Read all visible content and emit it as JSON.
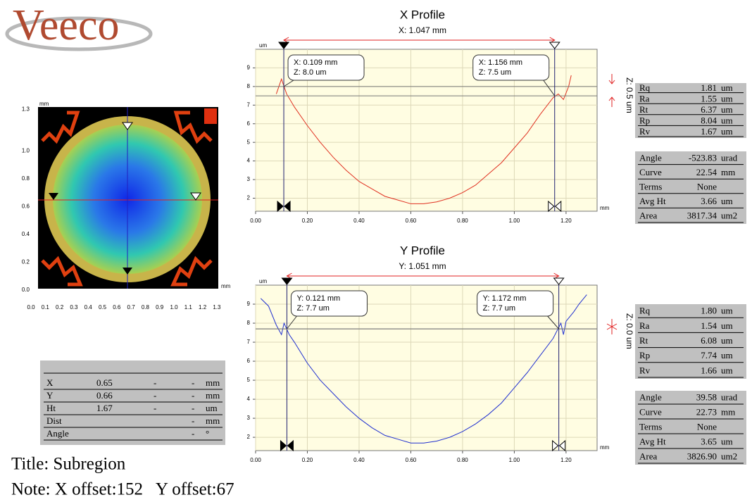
{
  "logo": "Veeco",
  "map": {
    "unit": "mm",
    "xticks": [
      "0.0",
      "0.1",
      "0.2",
      "0.3",
      "0.4",
      "0.5",
      "0.6",
      "0.7",
      "0.8",
      "0.9",
      "1.0",
      "1.1",
      "1.2",
      "1.3"
    ],
    "yticks": [
      "0.0",
      "0.2",
      "0.4",
      "0.6",
      "0.8",
      "1.0",
      "1.3"
    ]
  },
  "chart_data": [
    {
      "type": "line",
      "title": "X Profile",
      "subtitle": "X: 1.047 mm",
      "x_label": "mm",
      "y_label": "um",
      "side_label": "Z: 0.5 um",
      "xlim": [
        0,
        1.32
      ],
      "ylim": [
        1.3,
        10
      ],
      "xticks": [
        {
          "value": 0,
          "label": "0.00"
        },
        {
          "value": 0.2,
          "label": "0.20"
        },
        {
          "value": 0.4,
          "label": "0.40"
        },
        {
          "value": 0.6,
          "label": "0.60"
        },
        {
          "value": 0.8,
          "label": "0.80"
        },
        {
          "value": 1,
          "label": "1.00"
        },
        {
          "value": 1.2,
          "label": "1.20"
        }
      ],
      "yticks": [
        2,
        3,
        4,
        5,
        6,
        7,
        8,
        9
      ],
      "grid": true,
      "series": [
        {
          "name": "X",
          "color": "#e03020",
          "x": [
            0.08,
            0.1,
            0.12,
            0.15,
            0.2,
            0.25,
            0.3,
            0.35,
            0.4,
            0.45,
            0.5,
            0.55,
            0.6,
            0.65,
            0.7,
            0.75,
            0.8,
            0.85,
            0.9,
            0.95,
            1.0,
            1.05,
            1.1,
            1.15,
            1.17,
            1.19,
            1.21,
            1.22
          ],
          "values": [
            7.6,
            8.4,
            7.6,
            6.9,
            5.9,
            5.0,
            4.2,
            3.5,
            2.9,
            2.5,
            2.1,
            1.9,
            1.7,
            1.7,
            1.8,
            2.0,
            2.3,
            2.7,
            3.3,
            3.9,
            4.7,
            5.5,
            6.5,
            7.4,
            7.6,
            7.3,
            8.0,
            8.6
          ]
        }
      ],
      "cursors": [
        {
          "x": 0.109,
          "z": 8.0,
          "label_x": "X: 0.109 mm",
          "label_z": "Z: 8.0 um"
        },
        {
          "x": 1.156,
          "z": 7.5,
          "label_x": "X: 1.156 mm",
          "label_z": "Z: 7.5 um"
        }
      ]
    },
    {
      "type": "line",
      "title": "Y Profile",
      "subtitle": "Y: 1.051 mm",
      "x_label": "mm",
      "y_label": "um",
      "side_label": "Z: 0.0 um",
      "xlim": [
        0,
        1.32
      ],
      "ylim": [
        1.3,
        10
      ],
      "xticks": [
        {
          "value": 0,
          "label": "0.00"
        },
        {
          "value": 0.2,
          "label": "0.20"
        },
        {
          "value": 0.4,
          "label": "0.40"
        },
        {
          "value": 0.6,
          "label": "0.60"
        },
        {
          "value": 0.8,
          "label": "0.80"
        },
        {
          "value": 1,
          "label": "1.00"
        },
        {
          "value": 1.2,
          "label": "1.20"
        }
      ],
      "yticks": [
        2,
        3,
        4,
        5,
        6,
        7,
        8,
        9
      ],
      "grid": true,
      "series": [
        {
          "name": "Y",
          "color": "#2030d0",
          "x": [
            0.02,
            0.05,
            0.08,
            0.1,
            0.11,
            0.13,
            0.15,
            0.2,
            0.25,
            0.3,
            0.35,
            0.4,
            0.45,
            0.5,
            0.55,
            0.6,
            0.65,
            0.7,
            0.75,
            0.8,
            0.85,
            0.9,
            0.95,
            1.0,
            1.05,
            1.1,
            1.15,
            1.18,
            1.19,
            1.2,
            1.23,
            1.25,
            1.28
          ],
          "values": [
            9.3,
            8.9,
            7.9,
            7.4,
            8.0,
            7.4,
            7.0,
            5.9,
            5.0,
            4.3,
            3.6,
            3.0,
            2.5,
            2.1,
            1.9,
            1.7,
            1.7,
            1.8,
            2.0,
            2.3,
            2.7,
            3.2,
            3.8,
            4.6,
            5.4,
            6.3,
            7.2,
            8.0,
            7.4,
            8.1,
            8.6,
            9.0,
            9.5
          ]
        }
      ],
      "cursors": [
        {
          "x": 0.121,
          "z": 7.7,
          "label_x": "Y: 0.121 mm",
          "label_z": "Z: 7.7 um"
        },
        {
          "x": 1.172,
          "z": 7.7,
          "label_x": "Y: 1.172 mm",
          "label_z": "Z: 7.7 um"
        }
      ]
    }
  ],
  "stats": [
    {
      "rows": [
        [
          "Rq",
          "1.81",
          "um"
        ],
        [
          "Ra",
          "1.55",
          "um"
        ],
        [
          "Rt",
          "6.37",
          "um"
        ],
        [
          "Rp",
          "8.04",
          "um"
        ],
        [
          "Rv",
          "1.67",
          "um"
        ]
      ]
    },
    {
      "rows": [
        [
          "Angle",
          "-523.83",
          "urad"
        ],
        [
          "Curve",
          "22.54",
          "mm"
        ],
        [
          "Terms",
          "None"
        ],
        [
          "Avg Ht",
          "3.66",
          "um"
        ],
        [
          "Area",
          "3817.34",
          "um2"
        ]
      ]
    },
    {
      "rows": [
        [
          "Rq",
          "1.80",
          "um"
        ],
        [
          "Ra",
          "1.54",
          "um"
        ],
        [
          "Rt",
          "6.08",
          "um"
        ],
        [
          "Rp",
          "7.74",
          "um"
        ],
        [
          "Rv",
          "1.66",
          "um"
        ]
      ]
    },
    {
      "rows": [
        [
          "Angle",
          "39.58",
          "urad"
        ],
        [
          "Curve",
          "22.73",
          "mm"
        ],
        [
          "Terms",
          "None"
        ],
        [
          "Avg Ht",
          "3.65",
          "um"
        ],
        [
          "Area",
          "3826.90",
          "um2"
        ]
      ]
    }
  ],
  "table": {
    "rows": [
      [
        "X",
        "0.65",
        "-",
        "-",
        "mm"
      ],
      [
        "Y",
        "0.66",
        "-",
        "-",
        "mm"
      ],
      [
        "Ht",
        "1.67",
        "-",
        "-",
        "um"
      ],
      [
        "Dist",
        "-",
        "mm"
      ],
      [
        "Angle",
        "-",
        "°"
      ]
    ]
  },
  "title": "Title: Subregion",
  "note": "Note: X offset:152   Y offset:67"
}
